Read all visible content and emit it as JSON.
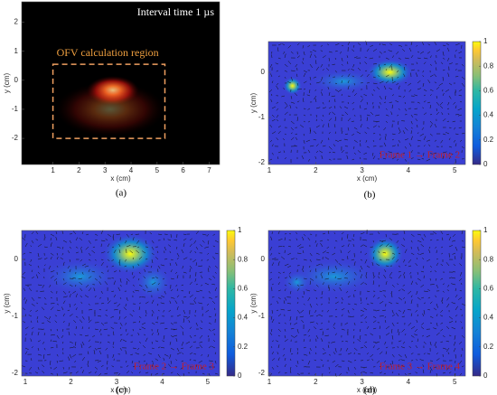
{
  "panels": [
    {
      "caption": "(a)",
      "xlabel": "x (cm)",
      "ylabel": "y (cm)",
      "xlim": [
        -0.2,
        7.4
      ],
      "ylim": [
        -2.9,
        2.7
      ],
      "xticks": [
        1,
        2,
        3,
        4,
        5,
        6,
        7
      ],
      "yticks": [
        2,
        1,
        0,
        -1,
        -2
      ],
      "annotations": [
        "Interval time 1 µs",
        "OFV calculation region"
      ]
    },
    {
      "caption": "(b)",
      "xlabel": "x (cm)",
      "ylabel": "y (cm)",
      "xlim": [
        0.98,
        5.23
      ],
      "ylim": [
        -2.04,
        0.68
      ],
      "xticks": [
        1,
        2,
        3,
        4,
        5
      ],
      "yticks": [
        0,
        -1,
        -2
      ],
      "clim": [
        0,
        1
      ],
      "cticks": [
        0,
        0.2,
        0.4,
        0.6,
        0.8,
        1
      ],
      "annotations": [
        "Frame 1 → Frame 2"
      ]
    },
    {
      "caption": "(c)",
      "xlabel": "x (cm)",
      "ylabel": "y (cm)",
      "xlim": [
        0.92,
        5.26
      ],
      "ylim": [
        -2.05,
        0.51
      ],
      "xticks": [
        1,
        2,
        3,
        4,
        5
      ],
      "yticks": [
        0,
        -1,
        -2
      ],
      "clim": [
        0,
        1
      ],
      "cticks": [
        0,
        0.2,
        0.4,
        0.6,
        0.8,
        1
      ],
      "annotations": [
        "Frame 2 → Frame 3"
      ]
    },
    {
      "caption": "(d)",
      "xlabel": "x (cm)",
      "ylabel": "y (cm)",
      "xlim": [
        0.98,
        5.23
      ],
      "ylim": [
        -2.05,
        0.51
      ],
      "xticks": [
        1,
        2,
        3,
        4,
        5
      ],
      "yticks": [
        0,
        -1,
        -2
      ],
      "clim": [
        0,
        1
      ],
      "cticks": [
        0,
        0.2,
        0.4,
        0.6,
        0.8,
        1
      ],
      "annotations": [
        "Frame 3 → Frame 4"
      ]
    }
  ]
}
